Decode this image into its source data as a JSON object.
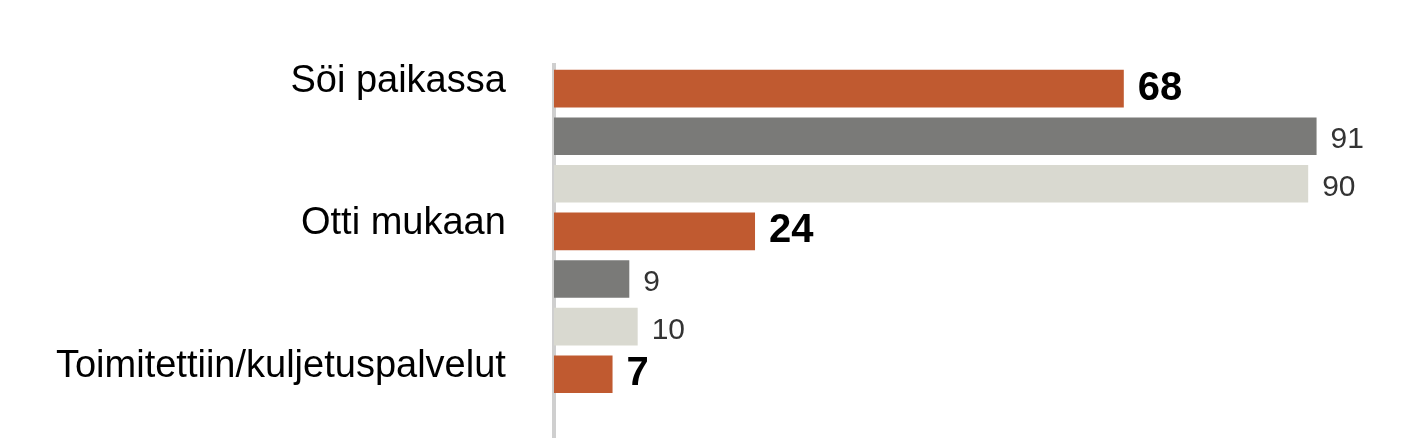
{
  "chart_data": {
    "type": "bar",
    "orientation": "horizontal",
    "categories": [
      "Söi paikassa",
      "Otti mukaan",
      "Toimitettiin/kuljetuspalvelut"
    ],
    "series": [
      {
        "color": "#c05a30",
        "values": [
          68,
          24,
          7
        ]
      },
      {
        "color": "#7a7a78",
        "values": [
          91,
          9,
          null
        ]
      },
      {
        "color": "#d9d9d0",
        "values": [
          90,
          10,
          null
        ]
      }
    ],
    "data_labels": true,
    "grid": false,
    "legend": false,
    "tick_labels": "y"
  }
}
